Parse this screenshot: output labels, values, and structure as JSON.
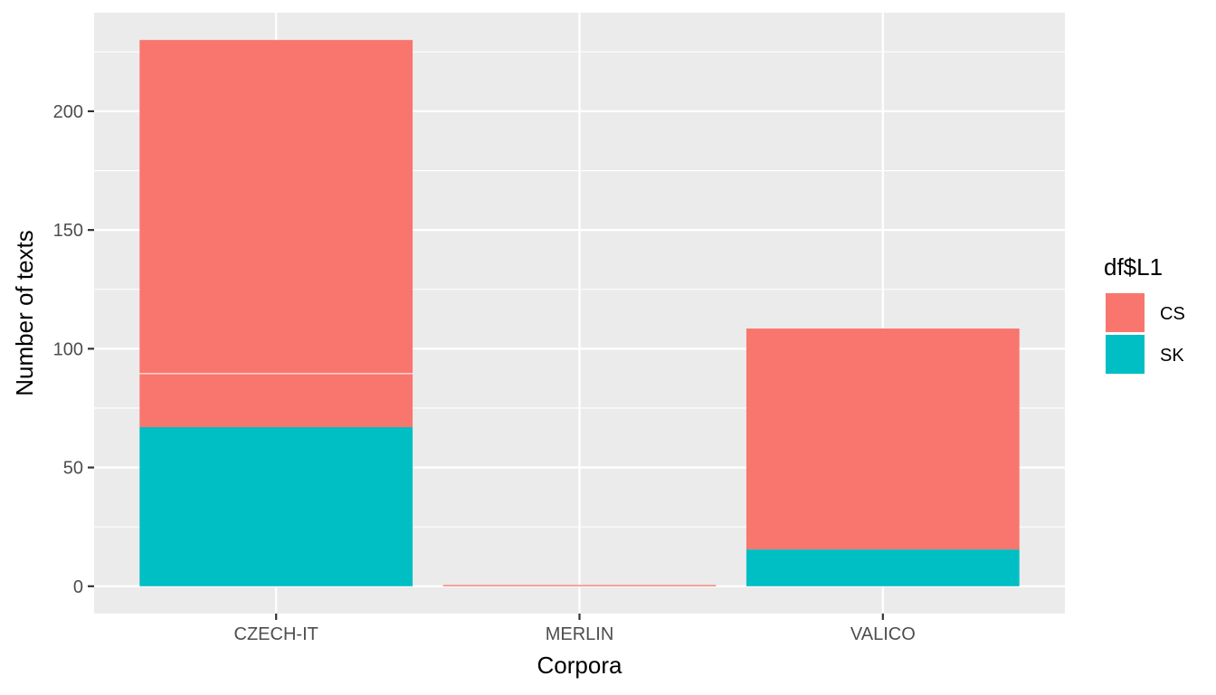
{
  "chart_data": {
    "type": "bar",
    "stacked": true,
    "categories": [
      "CZECH-IT",
      "MERLIN",
      "VALICO"
    ],
    "segments": [
      {
        "category": "CZECH-IT",
        "series": "SK",
        "value": 67
      },
      {
        "category": "CZECH-IT",
        "series": "CS",
        "value": 22.5
      },
      {
        "category": "CZECH-IT",
        "series": "CS",
        "value": 140.5
      },
      {
        "category": "MERLIN",
        "series": "CS",
        "value": 0.5
      },
      {
        "category": "VALICO",
        "series": "SK",
        "value": 15.5
      },
      {
        "category": "VALICO",
        "series": "CS",
        "value": 93
      }
    ],
    "series": [
      {
        "name": "CS",
        "color": "#F8766D",
        "values": [
          163,
          0.5,
          93
        ]
      },
      {
        "name": "SK",
        "color": "#00BFC4",
        "values": [
          67,
          0,
          15.5
        ]
      }
    ],
    "xlabel": "Corpora",
    "ylabel": "Number of texts",
    "ylim": [
      -11.5,
      241.5
    ],
    "yticks": [
      0,
      50,
      100,
      150,
      200
    ],
    "legend": {
      "title": "df$L1",
      "position": "right",
      "items": [
        "CS",
        "SK"
      ]
    },
    "grid": true,
    "panel_background": "#EBEBEB",
    "grid_color": "#FFFFFF"
  }
}
